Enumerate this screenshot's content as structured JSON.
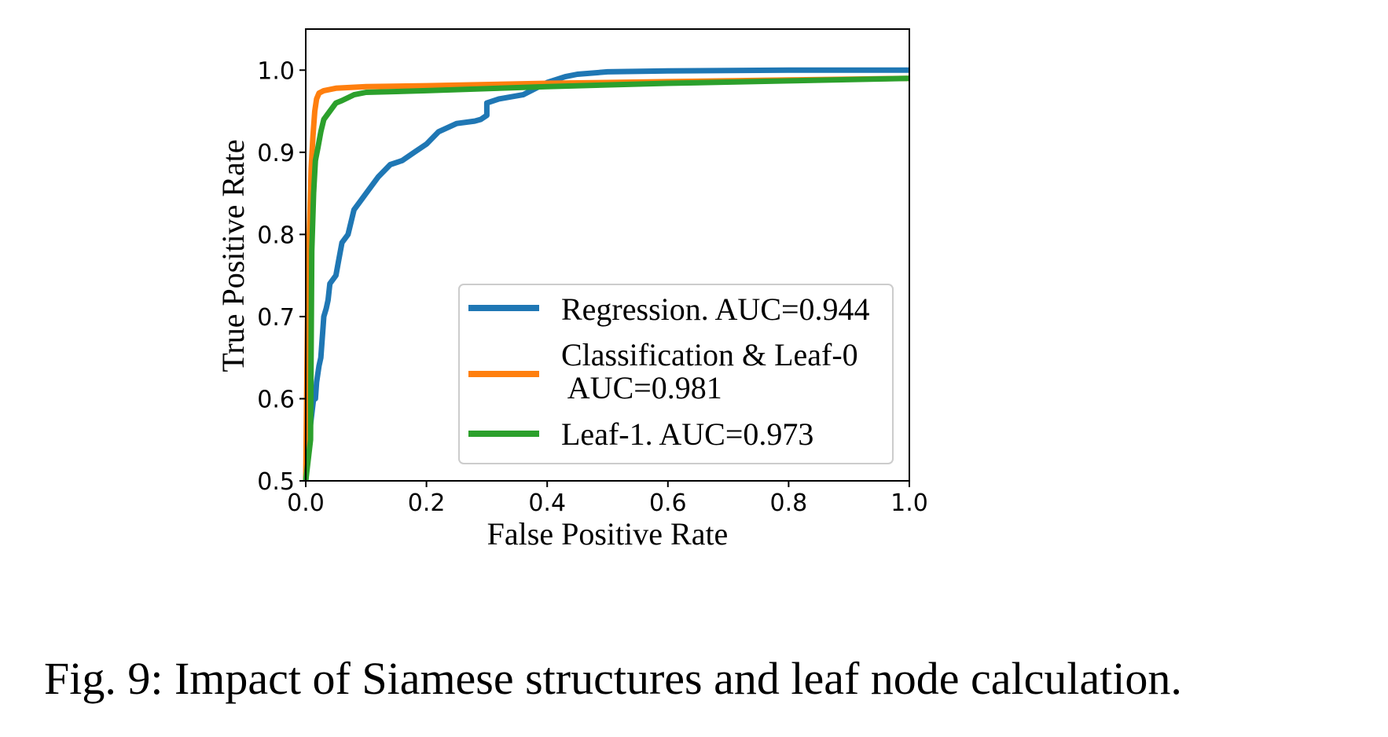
{
  "caption": "Fig. 9: Impact of Siamese structures and leaf node calculation.",
  "chart_data": {
    "type": "line",
    "title": "",
    "xlabel": "False Positive Rate",
    "ylabel": "True Positive Rate",
    "xlim": [
      0.0,
      1.0
    ],
    "ylim": [
      0.5,
      1.05
    ],
    "xticks": [
      0.0,
      0.2,
      0.4,
      0.6,
      0.8,
      1.0
    ],
    "xtick_labels": [
      "0.0",
      "0.2",
      "0.4",
      "0.6",
      "0.8",
      "1.0"
    ],
    "yticks": [
      0.5,
      0.6,
      0.7,
      0.8,
      0.9,
      1.0
    ],
    "ytick_labels": [
      "0.5",
      "0.6",
      "0.7",
      "0.8",
      "0.9",
      "1.0"
    ],
    "grid": false,
    "legend_position": "lower-right",
    "series": [
      {
        "name": "Regression. AUC=0.944",
        "color": "#1f77b4",
        "x": [
          0.0,
          0.005,
          0.013,
          0.016,
          0.018,
          0.022,
          0.025,
          0.028,
          0.03,
          0.034,
          0.037,
          0.04,
          0.05,
          0.055,
          0.06,
          0.07,
          0.08,
          0.1,
          0.12,
          0.14,
          0.16,
          0.18,
          0.2,
          0.22,
          0.25,
          0.28,
          0.29,
          0.3,
          0.3,
          0.32,
          0.36,
          0.4,
          0.43,
          0.45,
          0.5,
          0.6,
          0.8,
          1.0
        ],
        "y": [
          0.5,
          0.55,
          0.6,
          0.6,
          0.62,
          0.64,
          0.65,
          0.68,
          0.7,
          0.71,
          0.72,
          0.74,
          0.75,
          0.77,
          0.79,
          0.8,
          0.83,
          0.85,
          0.87,
          0.885,
          0.89,
          0.9,
          0.91,
          0.925,
          0.935,
          0.938,
          0.94,
          0.945,
          0.96,
          0.965,
          0.97,
          0.985,
          0.992,
          0.995,
          0.998,
          0.999,
          1.0,
          1.0
        ]
      },
      {
        "name": "Classification & Leaf-0\n AUC=0.981",
        "color": "#ff7f0e",
        "x": [
          0.0,
          0.003,
          0.006,
          0.009,
          0.012,
          0.015,
          0.018,
          0.022,
          0.03,
          0.05,
          0.1,
          0.2,
          0.4,
          0.6,
          0.8,
          1.0
        ],
        "y": [
          0.5,
          0.7,
          0.8,
          0.88,
          0.92,
          0.95,
          0.965,
          0.972,
          0.975,
          0.978,
          0.98,
          0.981,
          0.984,
          0.986,
          0.988,
          0.99
        ]
      },
      {
        "name": "Leaf-1. AUC=0.973",
        "color": "#2ca02c",
        "x": [
          0.0,
          0.008,
          0.01,
          0.013,
          0.016,
          0.02,
          0.025,
          0.03,
          0.04,
          0.05,
          0.06,
          0.08,
          0.1,
          0.2,
          0.4,
          0.6,
          0.8,
          1.0
        ],
        "y": [
          0.5,
          0.55,
          0.78,
          0.85,
          0.89,
          0.905,
          0.925,
          0.94,
          0.95,
          0.96,
          0.963,
          0.97,
          0.973,
          0.975,
          0.98,
          0.984,
          0.987,
          0.99
        ]
      }
    ],
    "legend": [
      {
        "line1": "Regression. AUC=0.944",
        "line2": ""
      },
      {
        "line1": "Classification & Leaf-0",
        "line2": " AUC=0.981"
      },
      {
        "line1": "Leaf-1. AUC=0.973",
        "line2": ""
      }
    ]
  }
}
